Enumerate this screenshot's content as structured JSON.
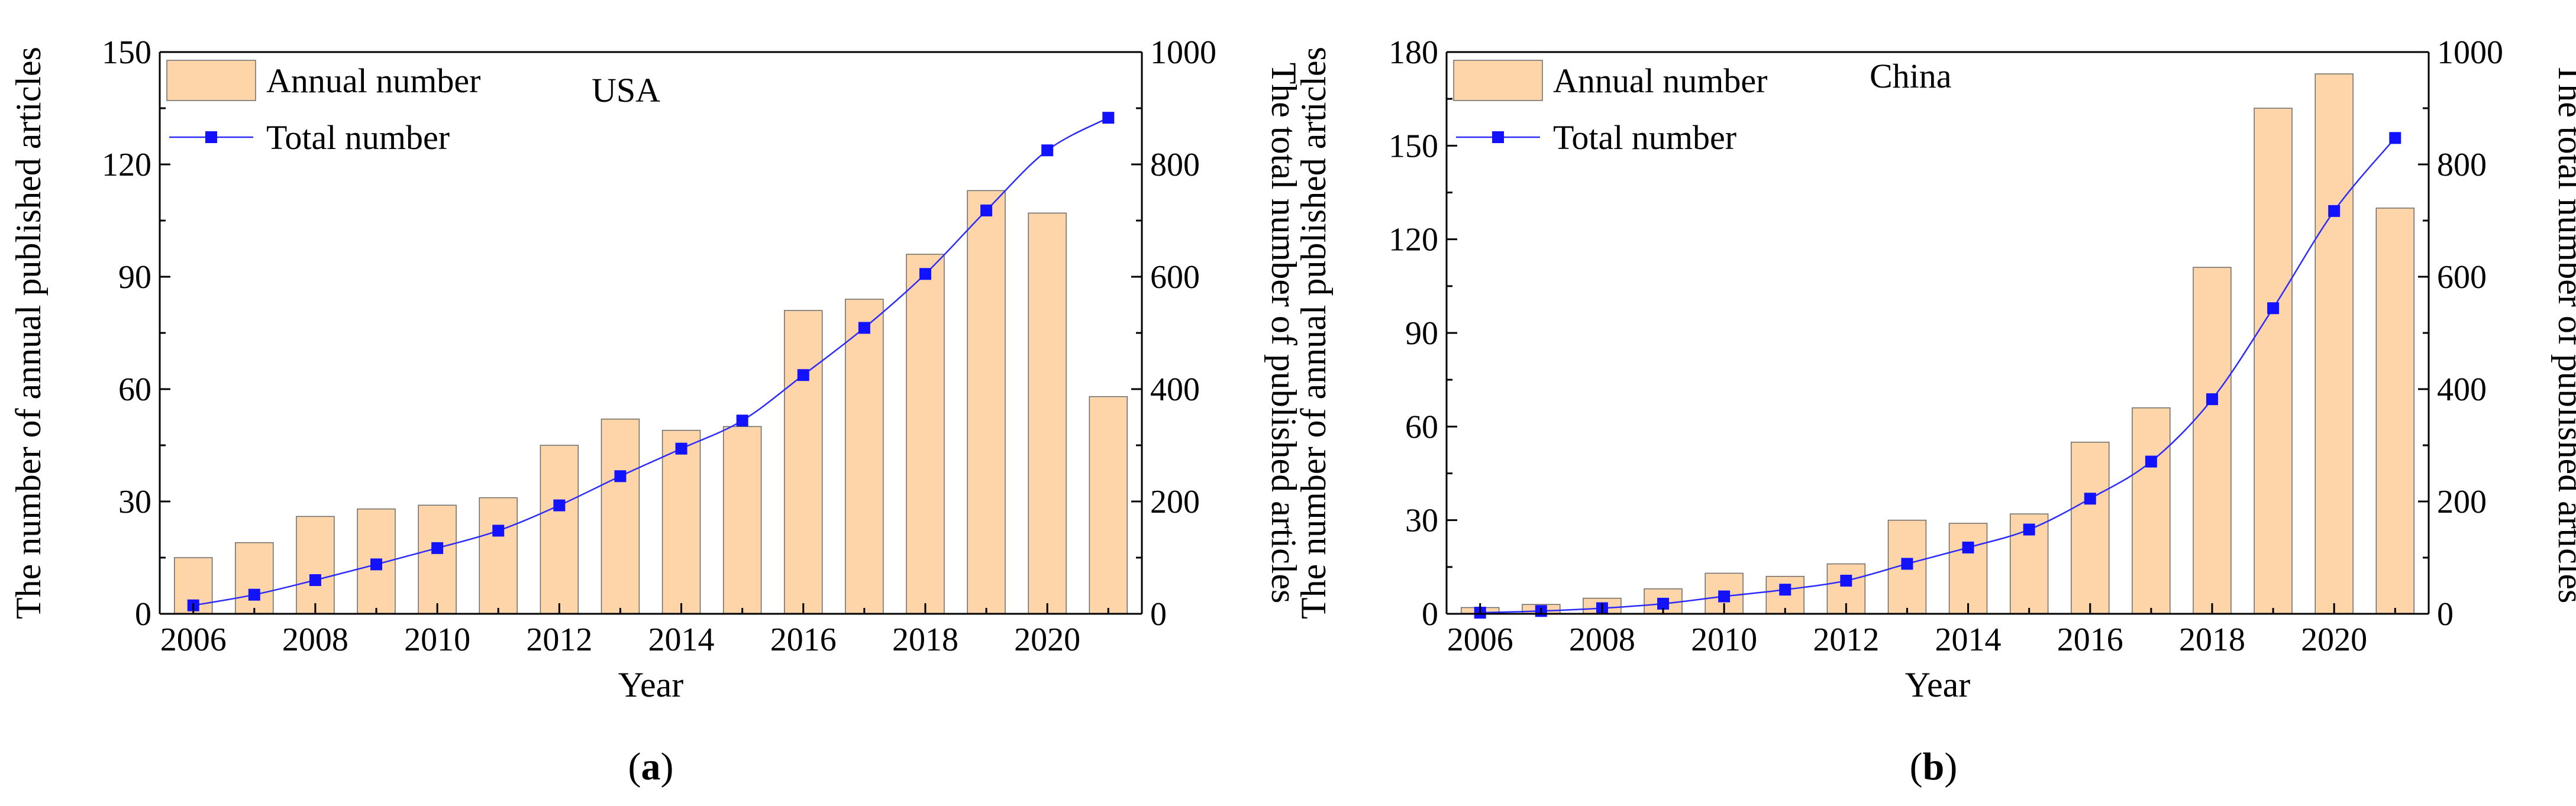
{
  "figure": {
    "panels": [
      {
        "panel_label": "(a)",
        "panel_letter": "a",
        "country": "USA",
        "legend": {
          "bar": "Annual number",
          "line": "Total number"
        },
        "xlabel": "Year",
        "ylabel_left": "The number of annual published articles",
        "ylabel_right": "The total number of published articles"
      },
      {
        "panel_label": "(b)",
        "panel_letter": "b",
        "country": "China",
        "legend": {
          "bar": "Annual number",
          "line": "Total number"
        },
        "xlabel": "Year",
        "ylabel_left": "The number of annual published articles",
        "ylabel_right": "The total number of published articles"
      }
    ]
  },
  "colors": {
    "bar_fill": "#FDD5A8",
    "bar_edge": "#6b6b6b",
    "line": "#2b2bff",
    "marker": "#1212ff",
    "axis": "#000000"
  },
  "chart_data": [
    {
      "type": "bar",
      "title": "USA",
      "xlabel": "Year",
      "ylabel": "The number of annual published articles",
      "y2label": "The total number of published articles",
      "categories": [
        2006,
        2007,
        2008,
        2009,
        2010,
        2011,
        2012,
        2013,
        2014,
        2015,
        2016,
        2017,
        2018,
        2019,
        2020,
        2021
      ],
      "x_ticks": [
        2006,
        2008,
        2010,
        2012,
        2014,
        2016,
        2018,
        2020
      ],
      "ylim": [
        0,
        150
      ],
      "y_ticks": [
        0,
        30,
        60,
        90,
        120,
        150
      ],
      "y2lim": [
        0,
        1000
      ],
      "y2_ticks": [
        0,
        200,
        400,
        600,
        800,
        1000
      ],
      "series": [
        {
          "name": "Annual number",
          "kind": "bar",
          "axis": "left",
          "values": [
            15,
            19,
            26,
            28,
            29,
            31,
            45,
            52,
            49,
            50,
            81,
            84,
            96,
            113,
            107,
            58
          ]
        },
        {
          "name": "Total number",
          "kind": "line",
          "axis": "right",
          "values": [
            15,
            34,
            60,
            88,
            117,
            148,
            193,
            245,
            294,
            344,
            425,
            509,
            605,
            718,
            825,
            883
          ]
        }
      ]
    },
    {
      "type": "bar",
      "title": "China",
      "xlabel": "Year",
      "ylabel": "The number of annual published articles",
      "y2label": "The total number of published articles",
      "categories": [
        2006,
        2007,
        2008,
        2009,
        2010,
        2011,
        2012,
        2013,
        2014,
        2015,
        2016,
        2017,
        2018,
        2019,
        2020,
        2021
      ],
      "x_ticks": [
        2006,
        2008,
        2010,
        2012,
        2014,
        2016,
        2018,
        2020
      ],
      "ylim": [
        0,
        180
      ],
      "y_ticks": [
        0,
        30,
        60,
        90,
        120,
        150,
        180
      ],
      "y2lim": [
        0,
        1000
      ],
      "y2_ticks": [
        0,
        200,
        400,
        600,
        800,
        1000
      ],
      "series": [
        {
          "name": "Annual number",
          "kind": "bar",
          "axis": "left",
          "values": [
            2,
            3,
            5,
            8,
            13,
            12,
            16,
            30,
            29,
            32,
            55,
            66,
            111,
            162,
            173,
            130
          ]
        },
        {
          "name": "Total number",
          "kind": "line",
          "axis": "right",
          "values": [
            2,
            5,
            10,
            18,
            31,
            43,
            59,
            89,
            118,
            150,
            205,
            271,
            382,
            544,
            717,
            847
          ]
        }
      ]
    }
  ]
}
